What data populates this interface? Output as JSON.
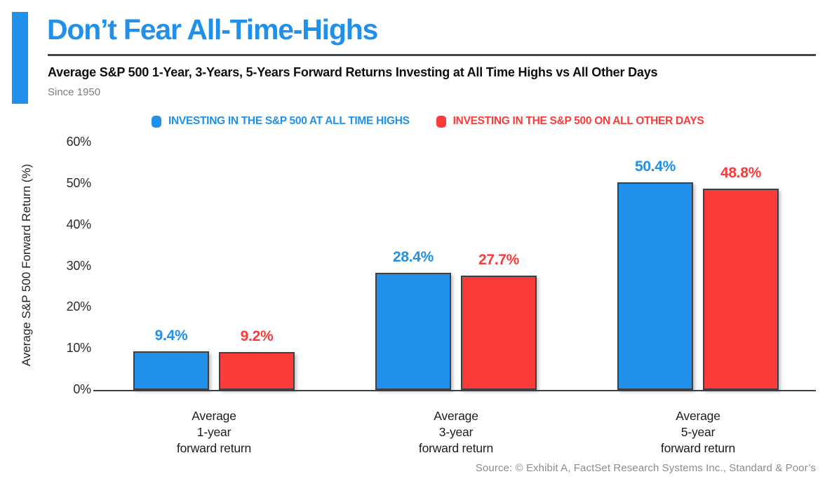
{
  "colors": {
    "blue": "#2190ea",
    "red": "#fb3a3a",
    "axis": "#3a4046",
    "divider": "#41474d",
    "text_dark": "#0e0e0e",
    "text_gray": "#7d7d7d",
    "source_gray": "#8c8c8c"
  },
  "header": {
    "title": "Don’t Fear All-Time-Highs",
    "subtitle": "Average S&P 500 1-Year, 3-Years, 5-Years Forward Returns Investing at All Time Highs vs All Other Days",
    "period": "Since 1950"
  },
  "legend": [
    {
      "label": "INVESTING IN THE S&P 500 AT ALL TIME HIGHS",
      "color": "#2190ea"
    },
    {
      "label": "INVESTING IN THE S&P 500 ON ALL OTHER DAYS",
      "color": "#fb3a3a"
    }
  ],
  "chart_data": {
    "type": "bar",
    "title": "Don’t Fear All-Time-Highs",
    "subtitle": "Average S&P 500 1-Year, 3-Years, 5-Years Forward Returns Investing at All Time Highs vs All Other Days",
    "period": "Since 1950",
    "categories": [
      [
        "Average",
        "1-year",
        "forward return"
      ],
      [
        "Average",
        "3-year",
        "forward return"
      ],
      [
        "Average",
        "5-year",
        "forward return"
      ]
    ],
    "series": [
      {
        "name": "INVESTING IN THE S&P 500 AT ALL TIME HIGHS",
        "color": "#2190ea",
        "values": [
          9.4,
          28.4,
          50.4
        ],
        "labels": [
          "9.4%",
          "28.4%",
          "50.4%"
        ]
      },
      {
        "name": "INVESTING IN THE S&P 500 ON ALL OTHER DAYS",
        "color": "#fb3a3a",
        "values": [
          9.2,
          27.7,
          48.8
        ],
        "labels": [
          "9.2%",
          "27.7%",
          "48.8%"
        ]
      }
    ],
    "xlabel": "",
    "ylabel": "Average S&P 500 Forward Return (%)",
    "yticks": [
      "0%",
      "10%",
      "20%",
      "30%",
      "40%",
      "50%",
      "60%"
    ],
    "ylim": [
      0,
      60
    ],
    "grid": false,
    "legend_position": "top"
  },
  "source": "Source: © Exhibit A, FactSet Research Systems Inc., Standard & Poor’s"
}
